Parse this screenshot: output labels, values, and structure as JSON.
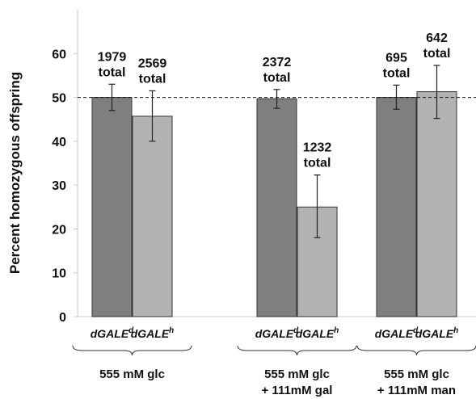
{
  "chart_data": {
    "type": "bar",
    "title": "",
    "xlabel": "",
    "ylabel": "Percent homozygous offspring",
    "ylim": [
      0,
      70
    ],
    "yticks": [
      0,
      10,
      20,
      30,
      40,
      50,
      60
    ],
    "reference_line": 50,
    "colors": {
      "dGALEd": "#7f7f7f",
      "dGALEh": "#b2b2b2"
    },
    "groups": [
      {
        "label_lines": [
          "555 mM glc"
        ],
        "bars": [
          {
            "category": "dGALE",
            "sup": "d",
            "series": "dGALEd",
            "value": 50.0,
            "err_low": 47.0,
            "err_high": 53.0,
            "label_lines": [
              "1979",
              "total"
            ]
          },
          {
            "category": "dGALE",
            "sup": "h",
            "series": "dGALEh",
            "value": 45.7,
            "err_low": 40.0,
            "err_high": 51.5,
            "label_lines": [
              "2569",
              "total"
            ]
          }
        ]
      },
      {
        "label_lines": [
          "555 mM glc",
          "+ 111mM gal"
        ],
        "bars": [
          {
            "category": "dGALE",
            "sup": "d",
            "series": "dGALEd",
            "value": 49.7,
            "err_low": 47.5,
            "err_high": 51.8,
            "label_lines": [
              "2372",
              "total"
            ]
          },
          {
            "category": "dGALE",
            "sup": "h",
            "series": "dGALEh",
            "value": 25.0,
            "err_low": 18.0,
            "err_high": 32.3,
            "label_lines": [
              "1232",
              "total"
            ]
          }
        ]
      },
      {
        "label_lines": [
          "555 mM glc",
          "+ 111mM man"
        ],
        "bars": [
          {
            "category": "dGALE",
            "sup": "d",
            "series": "dGALEd",
            "value": 50.0,
            "err_low": 47.3,
            "err_high": 52.8,
            "label_lines": [
              "695",
              "total"
            ]
          },
          {
            "category": "dGALE",
            "sup": "h",
            "series": "dGALEh",
            "value": 51.3,
            "err_low": 45.2,
            "err_high": 57.3,
            "label_lines": [
              "642",
              "total"
            ]
          }
        ]
      }
    ]
  }
}
